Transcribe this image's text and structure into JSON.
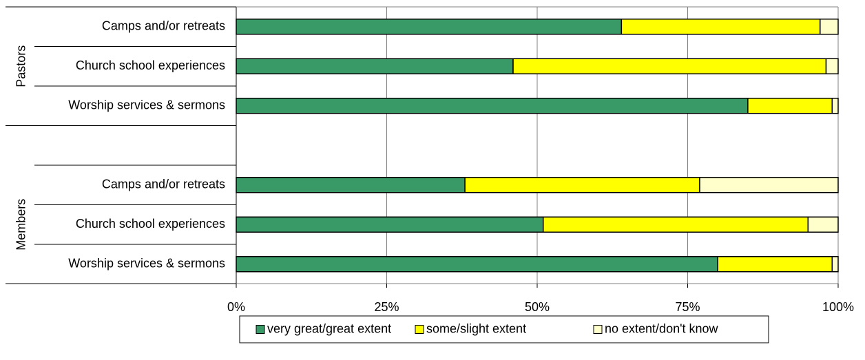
{
  "chart_data": {
    "type": "bar",
    "orientation": "horizontal",
    "stacked": true,
    "groups": [
      {
        "label": "Pastors",
        "categories": [
          "Camps and/or retreats",
          "Church school experiences",
          "Worship services & sermons"
        ],
        "series": [
          {
            "name": "very great/great extent",
            "values": [
              64,
              46,
              85
            ]
          },
          {
            "name": "some/slight extent",
            "values": [
              33,
              52,
              14
            ]
          },
          {
            "name": "no extent/don't know",
            "values": [
              3,
              2,
              1
            ]
          }
        ]
      },
      {
        "label": "Members",
        "categories": [
          "Camps and/or retreats",
          "Church school experiences",
          "Worship services & sermons"
        ],
        "series": [
          {
            "name": "very great/great extent",
            "values": [
              38,
              51,
              80
            ]
          },
          {
            "name": "some/slight extent",
            "values": [
              39,
              44,
              19
            ]
          },
          {
            "name": "no extent/don't know",
            "values": [
              23,
              5,
              1
            ]
          }
        ]
      }
    ],
    "x_ticks": [
      "0%",
      "25%",
      "50%",
      "75%",
      "100%"
    ],
    "xlim": [
      0,
      100
    ],
    "grid": "vertical",
    "legend": {
      "placement": "bottom",
      "entries": [
        "very great/great extent",
        "some/slight extent",
        "no extent/don't know"
      ]
    },
    "colors": [
      "#3a9a67",
      "#ffff00",
      "#ffffcc"
    ]
  }
}
